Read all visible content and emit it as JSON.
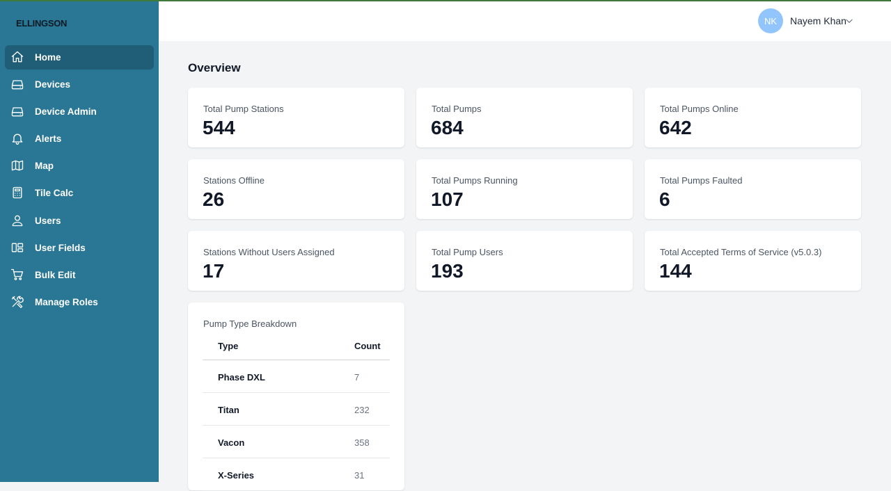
{
  "brand": {
    "logo_text": "ELLINGSON"
  },
  "sidebar": {
    "items": [
      {
        "label": "Home",
        "icon": "home-icon",
        "active": true
      },
      {
        "label": "Devices",
        "icon": "drive-icon"
      },
      {
        "label": "Device Admin",
        "icon": "drive-icon"
      },
      {
        "label": "Alerts",
        "icon": "bell-icon"
      },
      {
        "label": "Map",
        "icon": "map-icon"
      },
      {
        "label": "Tile Calc",
        "icon": "calculator-icon"
      },
      {
        "label": "Users",
        "icon": "user-icon"
      },
      {
        "label": "User Fields",
        "icon": "fields-icon"
      },
      {
        "label": "Bulk Edit",
        "icon": "cart-icon"
      },
      {
        "label": "Manage Roles",
        "icon": "tools-icon"
      }
    ]
  },
  "header": {
    "user": {
      "initials": "NK",
      "name": "Nayem Khan"
    }
  },
  "main": {
    "title": "Overview",
    "stats": [
      {
        "label": "Total Pump Stations",
        "value": "544"
      },
      {
        "label": "Total Pumps",
        "value": "684"
      },
      {
        "label": "Total Pumps Online",
        "value": "642"
      },
      {
        "label": "Stations Offline",
        "value": "26"
      },
      {
        "label": "Total Pumps Running",
        "value": "107"
      },
      {
        "label": "Total Pumps Faulted",
        "value": "6"
      },
      {
        "label": "Stations Without Users Assigned",
        "value": "17"
      },
      {
        "label": "Total Pump Users",
        "value": "193"
      },
      {
        "label": "Total Accepted Terms of Service (v5.0.3)",
        "value": "144"
      }
    ],
    "pump_breakdown": {
      "title": "Pump Type Breakdown",
      "columns": [
        "Type",
        "Count"
      ],
      "rows": [
        {
          "type": "Phase DXL",
          "count": "7"
        },
        {
          "type": "Titan",
          "count": "232"
        },
        {
          "type": "Vacon",
          "count": "358"
        },
        {
          "type": "X-Series",
          "count": "31"
        }
      ]
    }
  },
  "colors": {
    "sidebar_bg": "#2a7695",
    "sidebar_active": "#205e78",
    "avatar_bg": "#93c5fd"
  }
}
